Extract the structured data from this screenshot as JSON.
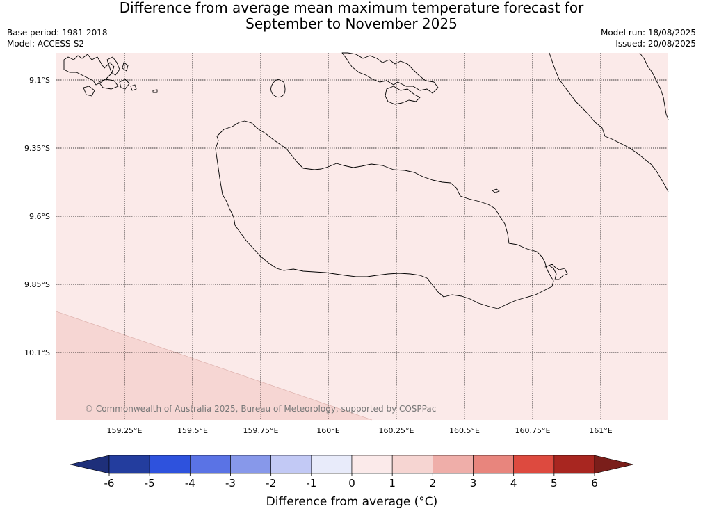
{
  "title_line1": "Difference from average mean maximum temperature forecast for",
  "title_line2": "September to November 2025",
  "base_period": "Base period: 1981-2018",
  "model": "Model: ACCESS-S2",
  "model_run": "Model run: 18/08/2025",
  "issued": "Issued: 20/08/2025",
  "map": {
    "lat_labels": [
      "9.1°S",
      "9.35°S",
      "9.6°S",
      "9.85°S",
      "10.1°S"
    ],
    "lon_labels": [
      "159.25°E",
      "159.5°E",
      "159.75°E",
      "160°E",
      "160.25°E",
      "160.5°E",
      "160.75°E",
      "161°E"
    ],
    "background_color": "#fbeae9",
    "southwest_region_color": "#f6d6d3",
    "copyright": "© Commonwealth of Australia 2025, Bureau of Meteorology, supported by COSPPac"
  },
  "colorbar": {
    "ticks": [
      "-6",
      "-5",
      "-4",
      "-3",
      "-2",
      "-1",
      "0",
      "1",
      "2",
      "3",
      "4",
      "5",
      "6"
    ],
    "colors": [
      "#233d9e",
      "#2e52dd",
      "#5a73e5",
      "#8798ea",
      "#c2c9f5",
      "#e8ebfa",
      "#fbeaea",
      "#f6d5d2",
      "#efaea9",
      "#e8857d",
      "#dd4a3f",
      "#a82620"
    ],
    "under_color": "#1e2f7a",
    "over_color": "#7a1e1a",
    "label": "Difference from average (°C)"
  }
}
